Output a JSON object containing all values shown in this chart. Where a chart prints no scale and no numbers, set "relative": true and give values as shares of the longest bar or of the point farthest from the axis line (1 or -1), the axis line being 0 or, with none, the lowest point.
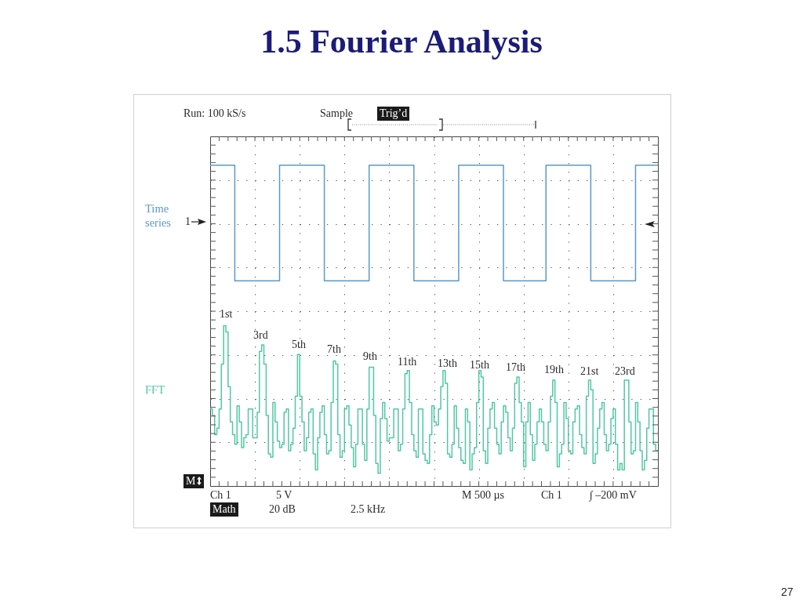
{
  "chart_data": {
    "type": "step",
    "title": "1.5 Fourier Analysis",
    "relative": true,
    "grid": true,
    "categories": [
      null,
      null,
      null,
      null,
      null,
      null,
      null,
      null,
      null,
      null,
      null,
      null,
      null,
      null,
      null,
      null,
      null,
      null,
      null,
      null,
      null,
      null,
      null,
      null,
      null,
      null,
      null,
      null,
      null,
      null,
      null,
      null,
      null,
      null,
      null,
      null,
      null,
      null,
      null,
      null,
      null,
      null,
      null,
      null,
      null,
      null,
      null,
      null,
      null,
      null,
      null,
      null,
      null,
      null,
      null,
      null,
      null,
      null,
      null,
      null,
      null,
      null,
      null,
      null,
      null,
      null,
      null,
      null,
      null,
      null,
      null,
      null,
      null,
      null,
      null,
      null,
      null,
      null,
      null,
      null,
      null,
      null,
      null,
      null,
      null,
      null,
      null,
      null,
      null,
      null,
      null,
      null,
      null,
      null,
      null,
      null,
      null,
      null,
      null,
      null,
      null,
      null,
      null,
      null,
      null,
      null,
      null,
      null,
      null,
      null,
      null,
      null,
      null,
      null,
      null,
      null,
      null,
      null,
      null,
      null,
      null,
      null,
      null,
      null,
      null,
      null,
      null,
      null,
      null,
      null,
      null,
      null,
      null,
      null,
      null,
      null,
      null,
      null,
      null,
      null,
      null,
      null,
      null,
      null,
      null,
      null,
      null,
      null,
      null,
      null,
      null,
      null,
      null,
      null,
      null,
      null,
      null,
      null,
      null,
      null,
      null,
      null,
      null,
      null,
      null,
      null,
      null,
      null,
      null,
      null,
      null,
      null,
      null,
      null,
      null,
      null,
      null,
      null,
      null,
      null,
      null,
      null,
      null,
      null,
      null,
      null,
      null,
      null,
      null,
      null,
      null,
      null,
      null,
      null,
      null,
      null,
      null,
      null,
      null,
      null,
      null
    ],
    "series": [
      {
        "name": "Time series",
        "color": "#5a9ac8",
        "values": [
          1,
          1,
          1,
          1,
          1,
          1,
          1,
          1,
          1,
          1,
          1,
          0.64,
          0.64,
          0.64,
          0.64,
          0.64,
          0.64,
          0.64,
          0.64,
          0.64,
          0.64,
          0.64,
          0.64,
          0.64,
          0.64,
          0.64,
          0.64,
          0.64,
          0.64,
          0.64,
          0.64,
          1,
          1,
          1,
          1,
          1,
          1,
          1,
          1,
          1,
          1,
          1,
          1,
          1,
          1,
          1,
          1,
          1,
          1,
          1,
          1,
          0.64,
          0.64,
          0.64,
          0.64,
          0.64,
          0.64,
          0.64,
          0.64,
          0.64,
          0.64,
          0.64,
          0.64,
          0.64,
          0.64,
          0.64,
          0.64,
          0.64,
          0.64,
          0.64,
          0.64,
          1,
          1,
          1,
          1,
          1,
          1,
          1,
          1,
          1,
          1,
          1,
          1,
          1,
          1,
          1,
          1,
          1,
          1,
          1,
          1,
          0.64,
          0.64,
          0.64,
          0.64,
          0.64,
          0.64,
          0.64,
          0.64,
          0.64,
          0.64,
          0.64,
          0.64,
          0.64,
          0.64,
          0.64,
          0.64,
          0.64,
          0.64,
          0.64,
          0.64,
          1,
          1,
          1,
          1,
          1,
          1,
          1,
          1,
          1,
          1,
          1,
          1,
          1,
          1,
          1,
          1,
          1,
          1,
          1,
          1,
          0.64,
          0.64,
          0.64,
          0.64,
          0.64,
          0.64,
          0.64,
          0.64,
          0.64,
          0.64,
          0.64,
          0.64,
          0.64,
          0.64,
          0.64,
          0.64,
          0.64,
          0.64,
          0.64,
          1,
          1,
          1,
          1,
          1,
          1,
          1,
          1,
          1,
          1,
          1,
          1,
          1,
          1,
          1,
          1,
          1,
          1,
          1,
          1,
          0.64,
          0.64,
          0.64,
          0.64,
          0.64,
          0.64,
          0.64,
          0.64,
          0.64,
          0.64,
          0.64,
          0.64,
          0.64,
          0.64,
          0.64,
          0.64,
          0.64,
          0.64,
          0.64,
          0.64,
          1,
          1,
          1,
          1,
          1,
          1,
          1,
          1,
          1,
          1,
          1
        ]
      },
      {
        "name": "FFT",
        "color": "#52c7a3",
        "values": [
          0.24,
          0.22,
          0.16,
          0.18,
          0.24,
          0.38,
          0.5,
          0.48,
          0.31,
          0.2,
          0.16,
          0.13,
          0.25,
          0.2,
          0.12,
          0.15,
          0.16,
          0.24,
          0.24,
          0.15,
          0.15,
          0.23,
          0.42,
          0.44,
          0.38,
          0.22,
          0.1,
          0.09,
          0.26,
          0.2,
          0.14,
          0.12,
          0.13,
          0.23,
          0.24,
          0.11,
          0.13,
          0.18,
          0.28,
          0.41,
          0.28,
          0.2,
          0.11,
          0.15,
          0.23,
          0.24,
          0.1,
          0.05,
          0.15,
          0.23,
          0.25,
          0.16,
          0.1,
          0.11,
          0.26,
          0.39,
          0.38,
          0.16,
          0.09,
          0.11,
          0.24,
          0.25,
          0.19,
          0.12,
          0.06,
          0.13,
          0.24,
          0.24,
          0.13,
          0.08,
          0.24,
          0.37,
          0.37,
          0.22,
          0.07,
          0.04,
          0.21,
          0.26,
          0.21,
          0.14,
          0.15,
          0.15,
          0.24,
          0.24,
          0.11,
          0.13,
          0.24,
          0.35,
          0.36,
          0.26,
          0.16,
          0.11,
          0.09,
          0.24,
          0.24,
          0.1,
          0.08,
          0.07,
          0.16,
          0.25,
          0.2,
          0.19,
          0.24,
          0.31,
          0.36,
          0.32,
          0.1,
          0.09,
          0.13,
          0.25,
          0.18,
          0.12,
          0.08,
          0.07,
          0.24,
          0.2,
          0.05,
          0.1,
          0.12,
          0.26,
          0.36,
          0.34,
          0.11,
          0.07,
          0.18,
          0.24,
          0.26,
          0.18,
          0.13,
          0.1,
          0.2,
          0.25,
          0.23,
          0.15,
          0.11,
          0.18,
          0.32,
          0.34,
          0.26,
          0.2,
          0.06,
          0.2,
          0.26,
          0.16,
          0.08,
          0.13,
          0.2,
          0.24,
          0.2,
          0.13,
          0.11,
          0.2,
          0.28,
          0.33,
          0.26,
          0.06,
          0.1,
          0.13,
          0.26,
          0.21,
          0.11,
          0.1,
          0.2,
          0.24,
          0.25,
          0.16,
          0.12,
          0.1,
          0.28,
          0.33,
          0.3,
          0.07,
          0.1,
          0.18,
          0.24,
          0.26,
          0.16,
          0.11,
          0.13,
          0.21,
          0.24,
          0.13,
          0.05,
          0.07,
          0.05,
          0.33,
          0.33,
          0.2,
          0.1,
          0.11,
          0.26,
          0.2,
          0.11,
          0.05,
          0.08,
          0.18,
          0.24,
          0.24,
          0.13,
          0.11,
          0.11
        ]
      }
    ],
    "annotations": [
      "Run: 100 kS/s",
      "Sample",
      "Trig’d",
      "1",
      "M",
      "1st",
      "3rd",
      "5th",
      "7th",
      "9th",
      "11th",
      "13th",
      "15th",
      "17th",
      "19th",
      "21st",
      "23rd",
      "Ch 1",
      "5 V",
      "M 500 µs",
      "Ch 1",
      "∫ –200 mV",
      "Math",
      "20 dB",
      "2.5 kHz",
      "27"
    ]
  }
}
